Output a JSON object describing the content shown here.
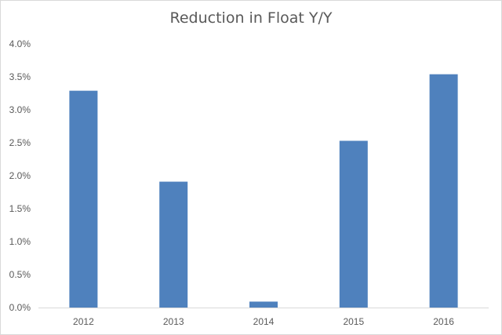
{
  "chart_data": {
    "type": "bar",
    "title": "Reduction in Float Y/Y",
    "xlabel": "",
    "ylabel": "",
    "categories": [
      "2012",
      "2013",
      "2014",
      "2015",
      "2016"
    ],
    "values": [
      3.29,
      1.91,
      0.09,
      2.53,
      3.54
    ],
    "ylim": [
      0,
      4.0
    ],
    "yticks": [
      "0.0%",
      "0.5%",
      "1.0%",
      "1.5%",
      "2.0%",
      "2.5%",
      "3.0%",
      "3.5%",
      "4.0%"
    ],
    "grid": false,
    "legend": "none",
    "bar_color": "#4f81bd",
    "axis_color": "#d9d9d9"
  }
}
